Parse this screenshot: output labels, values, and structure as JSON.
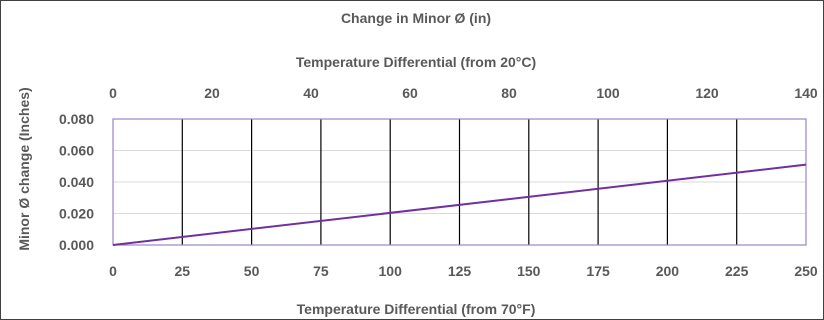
{
  "chart_data": {
    "type": "line",
    "title": "Change in Minor Ø (in)",
    "xlabel": "Temperature Differential (from 70°F)",
    "x2label": "Temperature Differential (from 20°C)",
    "ylabel": "Minor Ø change (Inches)",
    "xlim": [
      0,
      250
    ],
    "x2lim": [
      0,
      140
    ],
    "ylim": [
      0,
      0.08
    ],
    "xticks": [
      "0",
      "25",
      "50",
      "75",
      "100",
      "125",
      "150",
      "175",
      "200",
      "225",
      "250"
    ],
    "x2ticks": [
      "0",
      "20",
      "40",
      "60",
      "80",
      "100",
      "120",
      "140"
    ],
    "yticks": [
      "0.000",
      "0.020",
      "0.040",
      "0.060",
      "0.080"
    ],
    "series": [
      {
        "x": [
          0,
          250
        ],
        "y": [
          0,
          0.051
        ]
      }
    ],
    "vertical_gridlines_x": [
      25,
      50,
      75,
      100,
      125,
      150,
      175,
      200,
      225
    ],
    "grid": true,
    "legend": "none",
    "colors": {
      "line": "#7030a0",
      "plot_border": "#9a86c6",
      "vgrid": "#000000",
      "hgrid": "#d9d9d9",
      "text": "#595959"
    }
  }
}
